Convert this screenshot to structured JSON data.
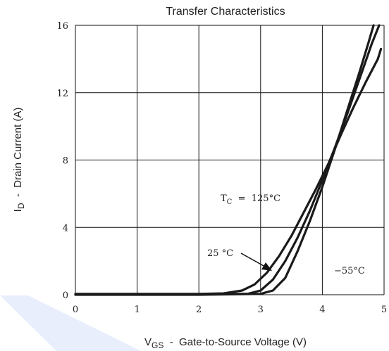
{
  "chart_data": {
    "type": "line",
    "title": "Transfer Characteristics",
    "xlabel": {
      "main": "V",
      "sub": "GS",
      "rest": "  -  Gate-to-Source Voltage (V)"
    },
    "ylabel": {
      "main": "I",
      "sub": "D",
      "rest": "  -  Drain Current (A)"
    },
    "xlim": [
      0,
      5
    ],
    "ylim": [
      0,
      16
    ],
    "x_ticks": [
      "0",
      "1",
      "2",
      "3",
      "4",
      "5"
    ],
    "y_ticks": [
      "0",
      "4",
      "8",
      "12",
      "16"
    ],
    "grid": true,
    "series": [
      {
        "name": "T_C = 125°C",
        "points": [
          [
            0,
            0.05
          ],
          [
            1,
            0.05
          ],
          [
            2,
            0.05
          ],
          [
            2.4,
            0.08
          ],
          [
            2.7,
            0.25
          ],
          [
            2.9,
            0.6
          ],
          [
            3.1,
            1.3
          ],
          [
            3.3,
            2.3
          ],
          [
            3.5,
            3.5
          ],
          [
            3.7,
            4.9
          ],
          [
            3.9,
            6.3
          ],
          [
            4.1,
            7.8
          ],
          [
            4.3,
            9.5
          ],
          [
            4.5,
            11.1
          ],
          [
            4.7,
            12.6
          ],
          [
            4.9,
            14.0
          ],
          [
            4.95,
            14.6
          ]
        ]
      },
      {
        "name": "25°C",
        "points": [
          [
            0,
            0.02
          ],
          [
            2,
            0.02
          ],
          [
            2.8,
            0.06
          ],
          [
            3.0,
            0.25
          ],
          [
            3.2,
            0.9
          ],
          [
            3.4,
            2.0
          ],
          [
            3.6,
            3.4
          ],
          [
            3.8,
            5.0
          ],
          [
            4.0,
            6.8
          ],
          [
            4.2,
            8.7
          ],
          [
            4.4,
            10.7
          ],
          [
            4.6,
            12.8
          ],
          [
            4.8,
            14.9
          ],
          [
            4.92,
            16.0
          ]
        ]
      },
      {
        "name": "−55°C",
        "points": [
          [
            0,
            0.0
          ],
          [
            2,
            0.0
          ],
          [
            3.0,
            0.05
          ],
          [
            3.2,
            0.25
          ],
          [
            3.4,
            1.0
          ],
          [
            3.6,
            2.6
          ],
          [
            3.8,
            4.4
          ],
          [
            4.0,
            6.4
          ],
          [
            4.2,
            8.6
          ],
          [
            4.4,
            10.9
          ],
          [
            4.6,
            13.2
          ],
          [
            4.75,
            15.0
          ],
          [
            4.83,
            16.0
          ]
        ]
      }
    ],
    "annotations": [
      {
        "name": "label-125",
        "main": "T",
        "sub": "C",
        "rest": "  =  125°C"
      },
      {
        "name": "label-25",
        "text": "25 °C"
      },
      {
        "name": "label-minus55",
        "text": "−55°C"
      }
    ]
  }
}
